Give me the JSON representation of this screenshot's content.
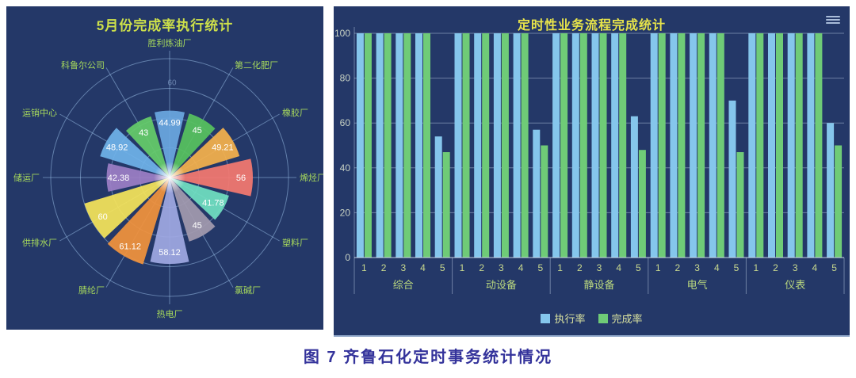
{
  "caption": "图 7  齐鲁石化定时事务统计情况",
  "menu_icon": "hamburger-menu",
  "colors": {
    "panel_bg": "#243868",
    "left_title": "#CDE04A",
    "right_title": "#E8E44A",
    "category_label": "#A6D85C",
    "value_label": "#FFFFFF",
    "polar_grid": "rgba(150,185,225,0.55)",
    "bar_grid": "rgba(200,215,235,0.45)",
    "axis_line": "rgba(225,235,248,0.85)",
    "ytick_text": "#C8D2C4",
    "xnum_text": "#C9D98E",
    "group_text": "#B9D77E",
    "legend_text": "#DCE4A0",
    "caption_text": "#34339B",
    "menu_icon": "#A9BCD9"
  },
  "chart_data": [
    {
      "type": "pie",
      "subtype": "nightingale-rose",
      "title": "5月份完成率执行统计",
      "rmax": 80,
      "rings": [
        20,
        40,
        60,
        80
      ],
      "ring_label_shown": "60",
      "categories": [
        "胜利炼油厂",
        "第二化肥厂",
        "橡胶厂",
        "烯烃厂",
        "塑料厂",
        "氯碱厂",
        "热电厂",
        "腈纶厂",
        "供排水厂",
        "储运厂",
        "运销中心",
        "科鲁尔公司"
      ],
      "values": [
        44.99,
        45,
        49.21,
        56,
        41.78,
        45,
        58.12,
        61.12,
        60,
        42.38,
        48.92,
        43
      ],
      "labels": [
        "44.99",
        "45",
        "49.21",
        "56",
        "41.78",
        "45",
        "58.12",
        "61.12",
        "60",
        "42.38",
        "48.92",
        "43"
      ],
      "colors": [
        "#6BA7E0",
        "#57C25F",
        "#F4B04C",
        "#F47870",
        "#70DFC1",
        "#A29AAE",
        "#9FA8E2",
        "#F1923C",
        "#F4E35A",
        "#9C7EC5",
        "#6FB2E8",
        "#65CB69"
      ]
    },
    {
      "type": "bar",
      "title": "定时性业务流程完成统计",
      "groups": [
        "综合",
        "动设备",
        "静设备",
        "电气",
        "仪表"
      ],
      "x": [
        "1",
        "2",
        "3",
        "4",
        "5"
      ],
      "series": [
        {
          "name": "执行率",
          "color": "#85C6EC",
          "values": [
            [
              100,
              100,
              100,
              100,
              54
            ],
            [
              100,
              100,
              100,
              100,
              57
            ],
            [
              100,
              100,
              100,
              100,
              63
            ],
            [
              100,
              100,
              100,
              100,
              70
            ],
            [
              100,
              100,
              100,
              100,
              60
            ]
          ]
        },
        {
          "name": "完成率",
          "color": "#6FCB77",
          "values": [
            [
              100,
              100,
              100,
              100,
              47
            ],
            [
              100,
              100,
              100,
              100,
              50
            ],
            [
              100,
              100,
              100,
              100,
              48
            ],
            [
              100,
              100,
              100,
              100,
              47
            ],
            [
              100,
              100,
              100,
              100,
              50
            ]
          ]
        }
      ],
      "ylim": [
        0,
        100
      ],
      "yticks": [
        0,
        20,
        40,
        60,
        80,
        100
      ],
      "grid": true,
      "legend_position": "bottom"
    }
  ]
}
